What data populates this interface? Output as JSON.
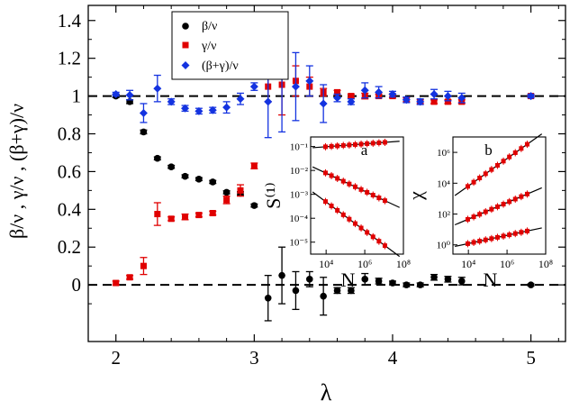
{
  "chart_data": {
    "type": "scatter",
    "title": "",
    "xlabel": "λ",
    "ylabel": "β/ν , γ/ν , (β+γ)/ν",
    "xlim": [
      1.8,
      5.25
    ],
    "ylim": [
      -0.3,
      1.48
    ],
    "xticks": [
      "2",
      "3",
      "4",
      "5"
    ],
    "yticks": [
      "0",
      "0.2",
      "0.4",
      "0.6",
      "0.8",
      "1",
      "1.2",
      "1.4"
    ],
    "legend": {
      "position": "top-left",
      "labels": [
        "β/ν",
        "γ/ν",
        "(β+γ)/ν"
      ]
    },
    "reference_lines": [
      0,
      1
    ],
    "colors": {
      "beta": "#000000",
      "gamma": "#e00000",
      "sum": "#1433e0"
    },
    "series": [
      {
        "name": "β/ν",
        "marker": "circle",
        "points": [
          {
            "x": 2.0,
            "y": 1.0,
            "e": 0.008
          },
          {
            "x": 2.1,
            "y": 0.97,
            "e": 0.01
          },
          {
            "x": 2.2,
            "y": 0.81,
            "e": 0.01
          },
          {
            "x": 2.3,
            "y": 0.67,
            "e": 0.008
          },
          {
            "x": 2.4,
            "y": 0.625,
            "e": 0.008
          },
          {
            "x": 2.5,
            "y": 0.575,
            "e": 0.008
          },
          {
            "x": 2.6,
            "y": 0.56,
            "e": 0.008
          },
          {
            "x": 2.7,
            "y": 0.545,
            "e": 0.008
          },
          {
            "x": 2.8,
            "y": 0.49,
            "e": 0.008
          },
          {
            "x": 2.9,
            "y": 0.485,
            "e": 0.008
          },
          {
            "x": 3.0,
            "y": 0.42,
            "e": 0.008
          },
          {
            "x": 3.1,
            "y": -0.07,
            "e": 0.12
          },
          {
            "x": 3.2,
            "y": 0.05,
            "e": 0.15
          },
          {
            "x": 3.3,
            "y": -0.03,
            "e": 0.1
          },
          {
            "x": 3.4,
            "y": 0.03,
            "e": 0.04
          },
          {
            "x": 3.5,
            "y": -0.06,
            "e": 0.1
          },
          {
            "x": 3.6,
            "y": -0.03,
            "e": 0.015
          },
          {
            "x": 3.7,
            "y": -0.03,
            "e": 0.015
          },
          {
            "x": 3.8,
            "y": 0.03,
            "e": 0.03
          },
          {
            "x": 3.9,
            "y": 0.02,
            "e": 0.015
          },
          {
            "x": 4.0,
            "y": 0.01,
            "e": 0.01
          },
          {
            "x": 4.1,
            "y": 0.0,
            "e": 0.01
          },
          {
            "x": 4.2,
            "y": 0.0,
            "e": 0.01
          },
          {
            "x": 4.3,
            "y": 0.04,
            "e": 0.015
          },
          {
            "x": 4.4,
            "y": 0.03,
            "e": 0.015
          },
          {
            "x": 4.5,
            "y": 0.02,
            "e": 0.02
          },
          {
            "x": 5.0,
            "y": 0.0,
            "e": 0.005
          }
        ]
      },
      {
        "name": "γ/ν",
        "marker": "square",
        "points": [
          {
            "x": 2.0,
            "y": 0.01,
            "e": 0.01
          },
          {
            "x": 2.1,
            "y": 0.04,
            "e": 0.01
          },
          {
            "x": 2.2,
            "y": 0.1,
            "e": 0.045
          },
          {
            "x": 2.3,
            "y": 0.375,
            "e": 0.06
          },
          {
            "x": 2.4,
            "y": 0.35,
            "e": 0.01
          },
          {
            "x": 2.5,
            "y": 0.36,
            "e": 0.015
          },
          {
            "x": 2.6,
            "y": 0.37,
            "e": 0.01
          },
          {
            "x": 2.7,
            "y": 0.38,
            "e": 0.01
          },
          {
            "x": 2.8,
            "y": 0.45,
            "e": 0.02
          },
          {
            "x": 2.9,
            "y": 0.5,
            "e": 0.03
          },
          {
            "x": 3.0,
            "y": 0.63,
            "e": 0.015
          },
          {
            "x": 3.1,
            "y": 1.05,
            "e": 0.08
          },
          {
            "x": 3.2,
            "y": 1.06,
            "e": 0.16
          },
          {
            "x": 3.3,
            "y": 1.08,
            "e": 0.08
          },
          {
            "x": 3.4,
            "y": 1.05,
            "e": 0.05
          },
          {
            "x": 3.5,
            "y": 1.02,
            "e": 0.02
          },
          {
            "x": 3.6,
            "y": 1.02,
            "e": 0.01
          },
          {
            "x": 3.7,
            "y": 1.0,
            "e": 0.01
          },
          {
            "x": 3.8,
            "y": 1.0,
            "e": 0.015
          },
          {
            "x": 3.9,
            "y": 1.0,
            "e": 0.01
          },
          {
            "x": 4.0,
            "y": 1.0,
            "e": 0.01
          },
          {
            "x": 4.1,
            "y": 0.98,
            "e": 0.01
          },
          {
            "x": 4.2,
            "y": 0.97,
            "e": 0.01
          },
          {
            "x": 4.3,
            "y": 0.97,
            "e": 0.01
          },
          {
            "x": 4.4,
            "y": 0.97,
            "e": 0.01
          },
          {
            "x": 4.5,
            "y": 0.97,
            "e": 0.01
          },
          {
            "x": 5.0,
            "y": 1.0,
            "e": 0.005
          }
        ]
      },
      {
        "name": "(β+γ)/ν",
        "marker": "diamond",
        "points": [
          {
            "x": 2.0,
            "y": 1.01,
            "e": 0.01
          },
          {
            "x": 2.1,
            "y": 1.005,
            "e": 0.025
          },
          {
            "x": 2.2,
            "y": 0.91,
            "e": 0.05
          },
          {
            "x": 2.3,
            "y": 1.04,
            "e": 0.07
          },
          {
            "x": 2.4,
            "y": 0.97,
            "e": 0.015
          },
          {
            "x": 2.5,
            "y": 0.935,
            "e": 0.015
          },
          {
            "x": 2.6,
            "y": 0.92,
            "e": 0.015
          },
          {
            "x": 2.7,
            "y": 0.925,
            "e": 0.015
          },
          {
            "x": 2.8,
            "y": 0.94,
            "e": 0.03
          },
          {
            "x": 2.9,
            "y": 0.985,
            "e": 0.03
          },
          {
            "x": 3.0,
            "y": 1.05,
            "e": 0.02
          },
          {
            "x": 3.1,
            "y": 0.97,
            "e": 0.19
          },
          {
            "x": 3.2,
            "y": 1.11,
            "e": 0.3
          },
          {
            "x": 3.3,
            "y": 1.05,
            "e": 0.18
          },
          {
            "x": 3.4,
            "y": 1.08,
            "e": 0.08
          },
          {
            "x": 3.5,
            "y": 0.96,
            "e": 0.1
          },
          {
            "x": 3.6,
            "y": 0.99,
            "e": 0.02
          },
          {
            "x": 3.7,
            "y": 0.97,
            "e": 0.015
          },
          {
            "x": 3.8,
            "y": 1.03,
            "e": 0.04
          },
          {
            "x": 3.9,
            "y": 1.02,
            "e": 0.03
          },
          {
            "x": 4.0,
            "y": 1.01,
            "e": 0.015
          },
          {
            "x": 4.1,
            "y": 0.98,
            "e": 0.015
          },
          {
            "x": 4.2,
            "y": 0.97,
            "e": 0.015
          },
          {
            "x": 4.3,
            "y": 1.01,
            "e": 0.025
          },
          {
            "x": 4.4,
            "y": 1.0,
            "e": 0.025
          },
          {
            "x": 4.5,
            "y": 0.99,
            "e": 0.025
          },
          {
            "x": 5.0,
            "y": 1.0,
            "e": 0.01
          }
        ]
      }
    ],
    "insets": [
      {
        "label": "a",
        "xlabel": "N",
        "ylabel": "S⁽¹⁾",
        "xticks": [
          "10⁴",
          "10⁶",
          "10⁸"
        ],
        "yticks": [
          "10⁻¹",
          "10⁻²",
          "10⁻³",
          "10⁻⁴",
          "10⁻⁵"
        ],
        "xlim_log10": [
          3.2,
          8.0
        ],
        "ylim_log10": [
          -5.5,
          -0.6
        ],
        "fit_lines": [
          {
            "x_log10": [
              3.3,
              7.8
            ],
            "y_log10": [
              -1.05,
              -0.78
            ]
          },
          {
            "x_log10": [
              3.3,
              7.8
            ],
            "y_log10": [
              -1.85,
              -3.55
            ]
          },
          {
            "x_log10": [
              3.3,
              7.8
            ],
            "y_log10": [
              -2.9,
              -5.6
            ]
          }
        ]
      },
      {
        "label": "b",
        "xlabel": "N",
        "ylabel": "χ",
        "xticks": [
          "10⁴",
          "10⁶",
          "10⁸"
        ],
        "yticks": [
          "10⁰",
          "10²",
          "10⁴",
          "10⁶"
        ],
        "xlim_log10": [
          3.2,
          8.0
        ],
        "ylim_log10": [
          -0.6,
          7.0
        ],
        "fit_lines": [
          {
            "x_log10": [
              3.3,
              7.8
            ],
            "y_log10": [
              3.2,
              7.2
            ]
          },
          {
            "x_log10": [
              3.3,
              7.8
            ],
            "y_log10": [
              1.3,
              3.7
            ]
          },
          {
            "x_log10": [
              3.3,
              7.8
            ],
            "y_log10": [
              -0.1,
              1.1
            ]
          }
        ]
      }
    ]
  }
}
